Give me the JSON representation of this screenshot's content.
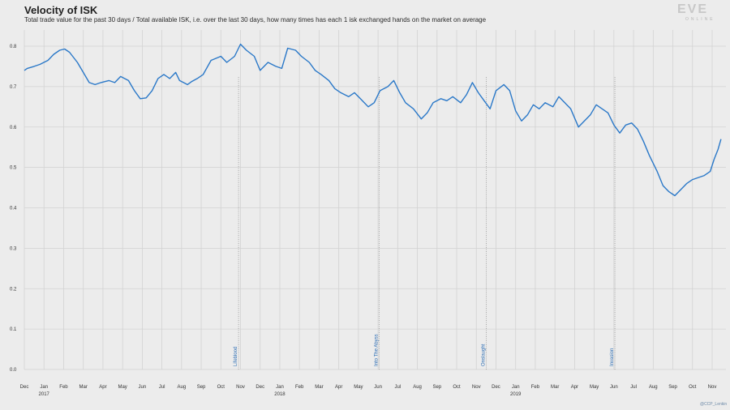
{
  "header": {
    "title": "Velocity of ISK",
    "subtitle": "Total trade value for the past 30 days / Total available ISK, i.e. over the last 30 days, how many times has each 1 isk exchanged hands on the market on average"
  },
  "logo": {
    "text": "EVE",
    "sub": "ONLINE"
  },
  "credit": "@CCP_Lenkin",
  "colors": {
    "line": "#2a78c8",
    "grid": "#d2d2d2",
    "background": "#ececec",
    "annotation_line": "#888888"
  },
  "chart_data": {
    "type": "line",
    "title": "Velocity of ISK",
    "xlabel": "",
    "ylabel": "",
    "ylim": [
      0,
      0.8
    ],
    "grid": true,
    "yticks": [
      "0.0",
      "0.1",
      "0.2",
      "0.3",
      "0.4",
      "0.5",
      "0.6",
      "0.7",
      "0.8"
    ],
    "x_months": [
      "Dec",
      "Jan",
      "Feb",
      "Mar",
      "Apr",
      "May",
      "Jun",
      "Jul",
      "Aug",
      "Sep",
      "Oct",
      "Nov",
      "Dec",
      "Jan",
      "Feb",
      "Mar",
      "Apr",
      "May",
      "Jun",
      "Jul",
      "Aug",
      "Sep",
      "Oct",
      "Nov",
      "Dec",
      "Jan",
      "Feb",
      "Mar",
      "Apr",
      "May",
      "Jun",
      "Jul",
      "Aug",
      "Sep",
      "Oct",
      "Nov"
    ],
    "year_labels": [
      {
        "label": "2017",
        "month_index": 1
      },
      {
        "label": "2018",
        "month_index": 13
      },
      {
        "label": "2019",
        "month_index": 25
      }
    ],
    "x_units": "months since 2016-12",
    "series": [
      {
        "x": [
          0,
          0.15,
          0.5,
          0.8,
          1.2,
          1.5,
          1.8,
          2.05,
          2.3,
          2.7,
          3.0,
          3.3,
          3.6,
          3.9,
          4.3,
          4.6,
          4.9,
          5.3,
          5.6,
          5.9,
          6.2,
          6.5,
          6.8,
          7.1,
          7.4,
          7.7,
          7.9,
          8.3,
          8.5,
          8.8,
          9.1,
          9.5,
          10.0,
          10.3,
          10.7,
          11.0,
          11.3,
          11.7,
          12.0,
          12.4,
          12.8,
          13.1,
          13.4,
          13.8,
          14.1,
          14.5,
          14.8,
          15.1,
          15.5,
          15.8,
          16.1,
          16.5,
          16.8,
          17.1,
          17.5,
          17.8,
          18.1,
          18.5,
          18.8,
          19.1,
          19.4,
          19.8,
          20.2,
          20.5,
          20.8,
          21.2,
          21.5,
          21.8,
          22.2,
          22.5,
          22.8,
          23.1,
          23.4,
          23.7,
          24.0,
          24.4,
          24.7,
          25.0,
          25.3,
          25.6,
          25.9,
          26.2,
          26.5,
          26.9,
          27.2,
          27.5,
          27.8,
          28.2,
          28.5,
          28.8,
          29.1,
          29.4,
          29.7,
          30.0,
          30.3,
          30.6,
          30.9,
          31.2,
          31.5,
          31.8,
          32.2,
          32.5,
          32.8,
          33.1,
          33.4,
          33.7,
          34.0,
          34.3,
          34.6,
          34.9,
          35.1,
          35.3,
          35.45
        ],
        "values": [
          0.74,
          0.745,
          0.75,
          0.755,
          0.765,
          0.78,
          0.79,
          0.793,
          0.785,
          0.76,
          0.735,
          0.71,
          0.705,
          0.71,
          0.715,
          0.71,
          0.725,
          0.715,
          0.69,
          0.67,
          0.672,
          0.69,
          0.72,
          0.73,
          0.72,
          0.735,
          0.715,
          0.705,
          0.712,
          0.72,
          0.73,
          0.765,
          0.775,
          0.76,
          0.775,
          0.805,
          0.79,
          0.775,
          0.74,
          0.76,
          0.75,
          0.745,
          0.795,
          0.79,
          0.775,
          0.76,
          0.74,
          0.73,
          0.715,
          0.695,
          0.685,
          0.675,
          0.685,
          0.67,
          0.65,
          0.66,
          0.69,
          0.7,
          0.715,
          0.685,
          0.66,
          0.645,
          0.62,
          0.635,
          0.66,
          0.67,
          0.665,
          0.675,
          0.66,
          0.68,
          0.71,
          0.685,
          0.665,
          0.645,
          0.69,
          0.705,
          0.69,
          0.64,
          0.615,
          0.63,
          0.655,
          0.645,
          0.66,
          0.65,
          0.675,
          0.66,
          0.645,
          0.6,
          0.615,
          0.63,
          0.655,
          0.645,
          0.635,
          0.605,
          0.585,
          0.605,
          0.61,
          0.595,
          0.565,
          0.53,
          0.49,
          0.455,
          0.44,
          0.43,
          0.445,
          0.46,
          0.47,
          0.475,
          0.48,
          0.49,
          0.52,
          0.545,
          0.57
        ]
      }
    ],
    "annotations": [
      {
        "label": "Lifeblood",
        "x": 10.9
      },
      {
        "label": "Into The Abyss",
        "x": 18.05
      },
      {
        "label": "Onslaught",
        "x": 23.5
      },
      {
        "label": "Invasion",
        "x": 30.05
      }
    ]
  }
}
